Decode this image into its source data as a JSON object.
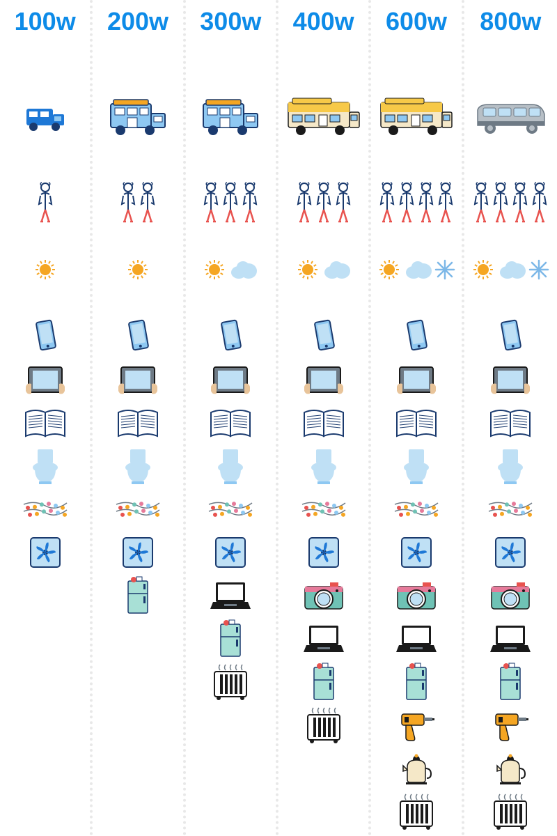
{
  "header_color": "#0d8be8",
  "header_fontsize": 36,
  "columns": [
    {
      "label": "100w",
      "vehicle": "small-blue-camper",
      "people": 1,
      "weather": [
        "sun"
      ],
      "devices": [
        "phone",
        "tablet",
        "book",
        "toilet",
        "lights",
        "fan"
      ]
    },
    {
      "label": "200w",
      "vehicle": "medium-blue-camper",
      "people": 2,
      "weather": [
        "sun"
      ],
      "devices": [
        "phone",
        "tablet",
        "book",
        "toilet",
        "lights",
        "fan",
        "fridge"
      ]
    },
    {
      "label": "300w",
      "vehicle": "medium-blue-camper",
      "people": 3,
      "weather": [
        "sun",
        "cloud"
      ],
      "devices": [
        "phone",
        "tablet",
        "book",
        "toilet",
        "lights",
        "fan",
        "laptop",
        "fridge",
        "heater"
      ]
    },
    {
      "label": "400w",
      "vehicle": "large-yellow-rv",
      "people": 3,
      "weather": [
        "sun",
        "cloud"
      ],
      "devices": [
        "phone",
        "tablet",
        "book",
        "toilet",
        "lights",
        "fan",
        "camera",
        "laptop",
        "fridge",
        "heater"
      ]
    },
    {
      "label": "600w",
      "vehicle": "large-yellow-rv",
      "people": 4,
      "weather": [
        "sun",
        "cloud",
        "snow"
      ],
      "devices": [
        "phone",
        "tablet",
        "book",
        "toilet",
        "lights",
        "fan",
        "camera",
        "laptop",
        "fridge",
        "drill",
        "kettle",
        "heater"
      ]
    },
    {
      "label": "800w",
      "vehicle": "gray-van",
      "people": 4,
      "weather": [
        "sun",
        "cloud",
        "snow"
      ],
      "devices": [
        "phone",
        "tablet",
        "book",
        "toilet",
        "lights",
        "fan",
        "camera",
        "laptop",
        "fridge",
        "drill",
        "kettle",
        "heater"
      ]
    }
  ],
  "palette": {
    "blue": "#1e78d6",
    "lightblue": "#8ec8f2",
    "paleblue": "#bfe0f5",
    "navy": "#1a3a6e",
    "yellow": "#f7c948",
    "gold": "#f5a623",
    "gray": "#b7bfc6",
    "darkgray": "#6e7a85",
    "teal": "#6fc2b5",
    "mint": "#a8e0d6",
    "red": "#e8534f",
    "pink": "#e67a9a",
    "cream": "#f5e8c8",
    "black": "#1a1a1a",
    "white": "#ffffff",
    "snow": "#7db8e8"
  }
}
